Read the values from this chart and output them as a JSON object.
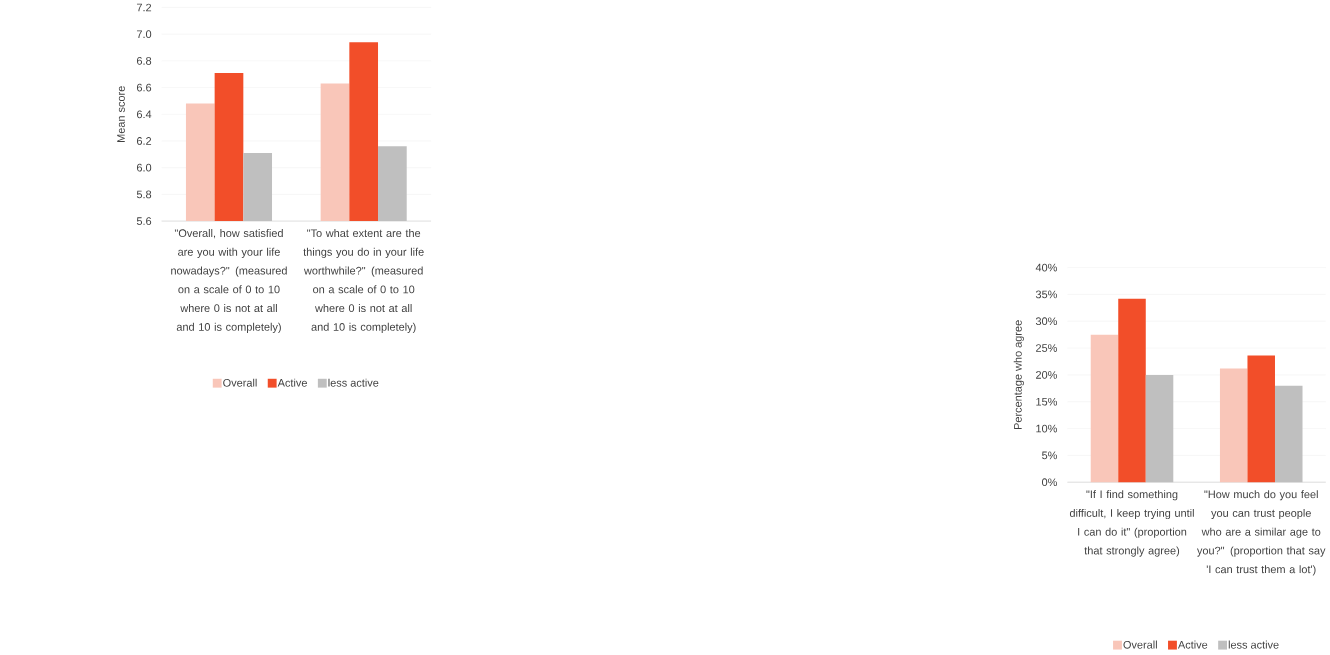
{
  "chart_data": [
    {
      "type": "bar",
      "ylabel": "Mean score",
      "categories": [
        "\"Overall, how satisfied are you with your life nowadays?\" (measured on a scale of 0 to 10 where 0 is not at all and 10 is completely)",
        "\"To what extent are the things you do in your life worthwhile?\" (measured on a scale of 0 to 10 where 0 is not at all and 10 is completely)"
      ],
      "series": [
        {
          "name": "Overall",
          "color": "#f9c6b9",
          "values": [
            6.48,
            6.63
          ]
        },
        {
          "name": "Active",
          "color": "#f24e29",
          "values": [
            6.71,
            6.94
          ]
        },
        {
          "name": "less active",
          "color": "#bfbfbf",
          "values": [
            6.11,
            6.16
          ]
        }
      ],
      "ylim": [
        5.6,
        7.2
      ],
      "yticks": [
        5.6,
        5.8,
        {
          "value": 6,
          "label": "6.0"
        },
        6.2,
        6.4,
        6.6,
        6.8,
        {
          "value": 7,
          "label": "7.0"
        },
        7.2
      ],
      "grid": "y",
      "legend": "bottom"
    },
    {
      "type": "bar",
      "ylabel": "Percentage who agree",
      "categories": [
        "\"If I find something difficult, I keep trying until I can do it\" (proportion that strongly agree)",
        "\"How much do you feel you can trust people who are a similar age to you?\" (proportion that say 'I can trust them a lot')"
      ],
      "series": [
        {
          "name": "Overall",
          "color": "#f9c6b9",
          "values": [
            27.5,
            21.2
          ]
        },
        {
          "name": "Active",
          "color": "#f24e29",
          "values": [
            34.2,
            23.6
          ]
        },
        {
          "name": "less active",
          "color": "#bfbfbf",
          "values": [
            20.0,
            18.0
          ]
        }
      ],
      "ylim": [
        0,
        40
      ],
      "yticks": [
        {
          "value": 0,
          "label": "0%"
        },
        {
          "value": 5,
          "label": "5%"
        },
        {
          "value": 10,
          "label": "10%"
        },
        {
          "value": 15,
          "label": "15%"
        },
        {
          "value": 20,
          "label": "20%"
        },
        {
          "value": 25,
          "label": "25%"
        },
        {
          "value": 30,
          "label": "30%"
        },
        {
          "value": 35,
          "label": "35%"
        },
        {
          "value": 40,
          "label": "40%"
        }
      ],
      "grid": "y",
      "legend": "bottom"
    }
  ]
}
